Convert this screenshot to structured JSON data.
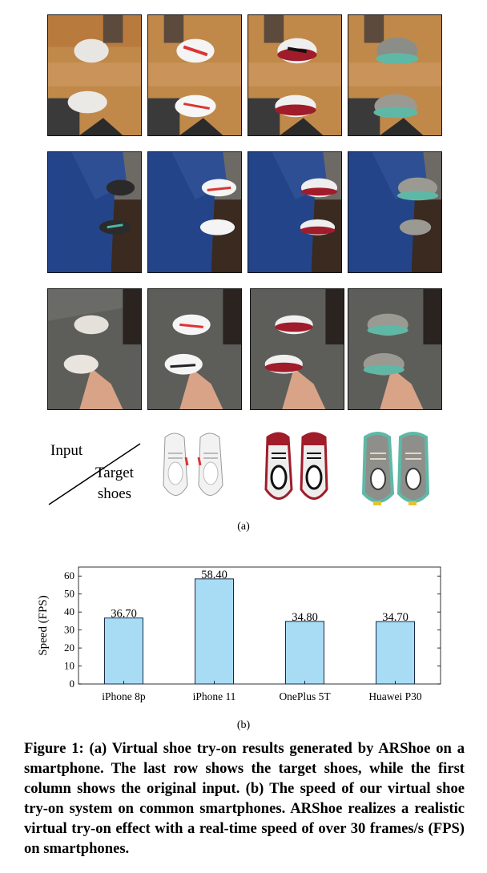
{
  "figure": {
    "io_labels": {
      "input": "Input",
      "target_line1": "Target",
      "target_line2": "shoes"
    },
    "subfig_a_label": "(a)",
    "subfig_b_label": "(b)",
    "caption": "Figure 1: (a) Virtual shoe try-on results generated by ARShoe on a smartphone. The last row shows the target shoes, while the first column shows the original input. (b) The speed of our virtual shoe try-on system on common smartphones. ARShoe realizes a realistic virtual try-on effect with a real-time speed of over 30 frames/s (FPS) on smartphones.",
    "photo_rows": [
      [
        "input-wood-floor",
        "try-on-white-red",
        "try-on-red-black",
        "try-on-teal"
      ],
      [
        "input-blue-pants",
        "try-on-white-red",
        "try-on-red-black",
        "try-on-teal"
      ],
      [
        "input-grey-carpet",
        "try-on-white-red",
        "try-on-red-black",
        "try-on-teal"
      ]
    ],
    "target_shoes": [
      "white-red-sneaker",
      "red-black-sneaker",
      "teal-grey-sneaker"
    ]
  },
  "chart_data": {
    "type": "bar",
    "categories": [
      "iPhone 8p",
      "iPhone 11",
      "OnePlus 5T",
      "Huawei P30"
    ],
    "values": [
      36.7,
      58.4,
      34.8,
      34.7
    ],
    "value_labels": [
      "36.70",
      "58.40",
      "34.80",
      "34.70"
    ],
    "ylabel": "Speed (FPS)",
    "xlabel": "",
    "ylim": [
      0,
      65
    ],
    "yticks": [
      0,
      10,
      20,
      30,
      40,
      50,
      60
    ],
    "grid": false,
    "bar_color": "#a8dcf5",
    "bar_edge": "#1a2a44"
  }
}
